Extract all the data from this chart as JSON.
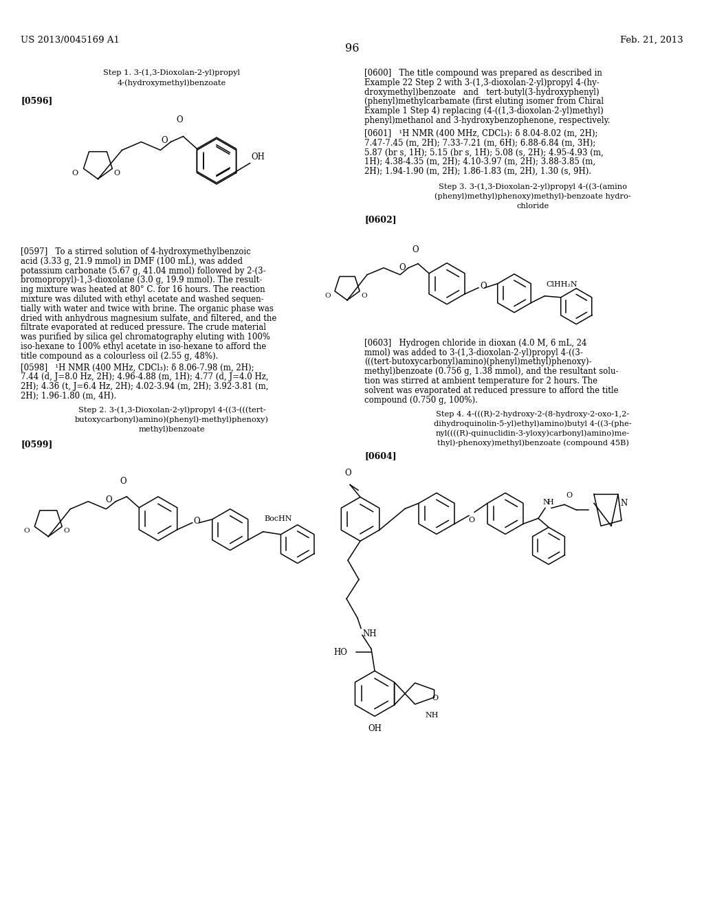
{
  "bg": "#ffffff",
  "header_left": "US 2013/0045169 A1",
  "header_right": "Feb. 21, 2013",
  "page_num": "96",
  "step1_title_l1": "Step 1. 3-(1,3-Dioxolan-2-yl)propyl",
  "step1_title_l2": "4-(hydroxymethyl)benzoate",
  "step2_title_l1": "Step 2. 3-(1,3-Dioxolan-2-yl)propyl 4-((3-(((tert-",
  "step2_title_l2": "butoxycarbonyl)amino)(phenyl)-methyl)phenoxy)",
  "step2_title_l3": "methyl)benzoate",
  "step3_title_l1": "Step 3. 3-(1,3-Dioxolan-2-yl)propyl 4-((3-(amino",
  "step3_title_l2": "(phenyl)methyl)phenoxy)methyl)-benzoate hydro-",
  "step3_title_l3": "chloride",
  "step4_title_l1": "Step 4. 4-(((R)-2-hydroxy-2-(8-hydroxy-2-oxo-1,2-",
  "step4_title_l2": "dihydroquinolin-5-yl)ethyl)amino)butyl 4-((3-(phe-",
  "step4_title_l3": "nyl((((R)-quinuclidin-3-yloxy)carbonyl)amino)me-",
  "step4_title_l4": "thyl)-phenoxy)methyl)benzoate (compound 45B)",
  "p596": "[0596]",
  "p597_lines": [
    "[0597]   To a stirred solution of 4-hydroxymethylbenzoic",
    "acid (3.33 g, 21.9 mmol) in DMF (100 mL), was added",
    "potassium carbonate (5.67 g, 41.04 mmol) followed by 2-(3-",
    "bromopropyl)-1,3-dioxolane (3.0 g, 19.9 mmol). The result-",
    "ing mixture was heated at 80° C. for 16 hours. The reaction",
    "mixture was diluted with ethyl acetate and washed sequen-",
    "tially with water and twice with brine. The organic phase was",
    "dried with anhydrous magnesium sulfate, and filtered, and the",
    "filtrate evaporated at reduced pressure. The crude material",
    "was purified by silica gel chromatography eluting with 100%",
    "iso-hexane to 100% ethyl acetate in iso-hexane to afford the",
    "title compound as a colourless oil (2.55 g, 48%)."
  ],
  "p598_lines": [
    "[0598]   ¹H NMR (400 MHz, CDCl₃): δ 8.06-7.98 (m, 2H);",
    "7.44 (d, J=8.0 Hz, 2H); 4.96-4.88 (m, 1H); 4.77 (d, J=4.0 Hz,",
    "2H); 4.36 (t, J=6.4 Hz, 2H); 4.02-3.94 (m, 2H); 3.92-3.81 (m,",
    "2H); 1.96-1.80 (m, 4H)."
  ],
  "p599": "[0599]",
  "p600_lines": [
    "[0600]   The title compound was prepared as described in",
    "Example 22 Step 2 with 3-(1,3-dioxolan-2-yl)propyl 4-(hy-",
    "droxymethyl)benzoate   and   tert-butyl(3-hydroxyphenyl)",
    "(phenyl)methylcarbamate (first eluting isomer from Chiral",
    "Example 1 Step 4) replacing (4-((1,3-dioxolan-2-yl)methyl)",
    "phenyl)methanol and 3-hydroxybenzophenone, respectively."
  ],
  "p601_lines": [
    "[0601]   ¹H NMR (400 MHz, CDCl₃): δ 8.04-8.02 (m, 2H);",
    "7.47-7.45 (m, 2H); 7.33-7.21 (m, 6H); 6.88-6.84 (m, 3H);",
    "5.87 (br s, 1H); 5.15 (br s, 1H); 5.08 (s, 2H); 4.95-4.93 (m,",
    "1H); 4.38-4.35 (m, 2H); 4.10-3.97 (m, 2H); 3.88-3.85 (m,",
    "2H); 1.94-1.90 (m, 2H); 1.86-1.83 (m, 2H), 1.30 (s, 9H)."
  ],
  "p602": "[0602]",
  "p603_lines": [
    "[0603]   Hydrogen chloride in dioxan (4.0 M, 6 mL, 24",
    "mmol) was added to 3-(1,3-dioxolan-2-yl)propyl 4-((3-",
    "(((tert-butoxycarbonyl)amino)(phenyl)methyl)phenoxy)-",
    "methyl)benzoate (0.756 g, 1.38 mmol), and the resultant solu-",
    "tion was stirred at ambient temperature for 2 hours. The",
    "solvent was evaporated at reduced pressure to afford the title",
    "compound (0.750 g, 100%)."
  ],
  "p604": "[0604]"
}
